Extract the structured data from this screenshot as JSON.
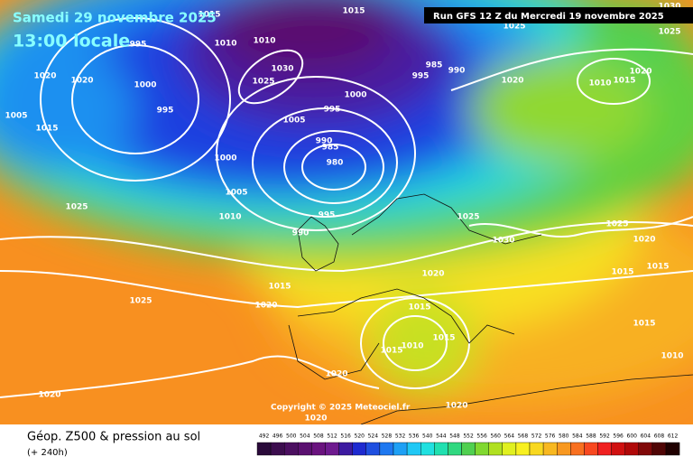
{
  "header": {
    "date": "Samedi 29 novembre 2025",
    "time": "13:00 locale",
    "run": "Run GFS 12 Z du Mercredi 19 novembre 2025"
  },
  "footer": {
    "title": "Géop. Z500 & pression au sol",
    "lead": "(+ 240h)",
    "copyright": "Copyright © 2025 Meteociel.fr"
  },
  "scale": {
    "values": [
      492,
      496,
      500,
      504,
      508,
      512,
      516,
      520,
      524,
      528,
      532,
      536,
      540,
      544,
      548,
      552,
      556,
      560,
      564,
      568,
      572,
      576,
      580,
      584,
      588,
      592,
      596,
      600,
      604,
      608,
      612
    ],
    "colors": [
      "#2a0a3a",
      "#3c0d4e",
      "#4b0f60",
      "#5a1070",
      "#6a137f",
      "#6e1a8f",
      "#3c1aa0",
      "#1e2ad0",
      "#1f4fe0",
      "#1e78f0",
      "#1ea0f5",
      "#20c8f5",
      "#20e0e0",
      "#20e0b0",
      "#30d880",
      "#50d050",
      "#80d830",
      "#b0e020",
      "#e0f020",
      "#f8f020",
      "#f8d820",
      "#f8b820",
      "#f89820",
      "#f87020",
      "#f84820",
      "#f02020",
      "#d01010",
      "#b00808",
      "#800808",
      "#500505",
      "#200000"
    ]
  },
  "pressure_labels": [
    1015,
    1015,
    1010,
    1010,
    1030,
    1025,
    1005,
    1000,
    995,
    995,
    985,
    990,
    1020,
    1010,
    1015,
    1020,
    1025,
    1030,
    1025,
    990,
    985,
    980,
    1000,
    1005,
    1010,
    995,
    990,
    1025,
    1025,
    1030,
    1025,
    1020,
    1015,
    1015,
    1020,
    1015,
    1020,
    1025,
    1015,
    1015,
    1010,
    1015,
    1020,
    1010,
    1015,
    1020,
    1020,
    1020,
    1000,
    995,
    1020,
    1020,
    1005,
    1015,
    995
  ]
}
